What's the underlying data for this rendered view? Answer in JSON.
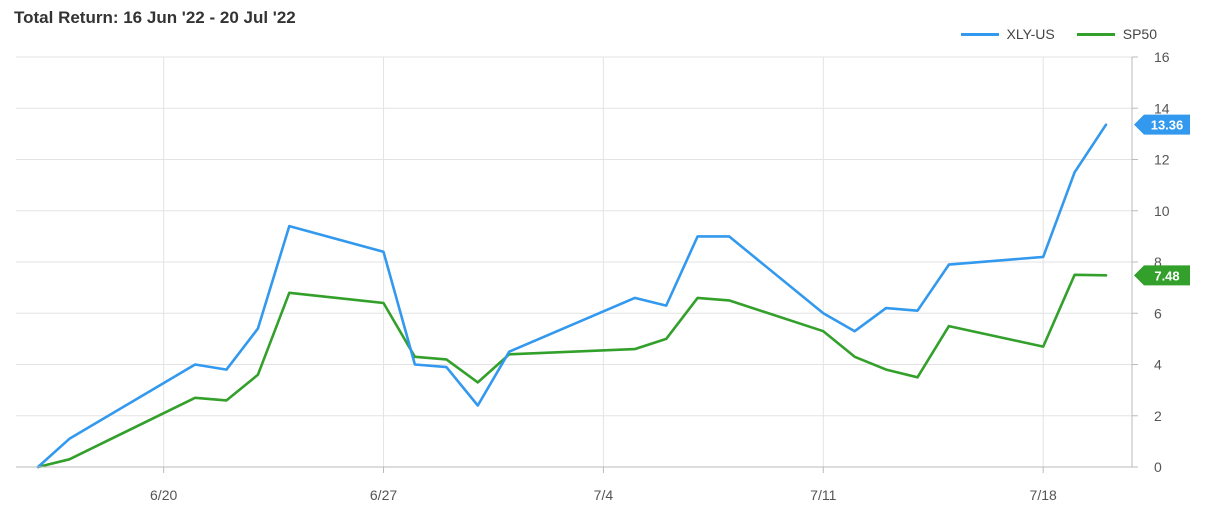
{
  "chart_data": {
    "type": "line",
    "title": "Total Return: 16 Jun '22 - 20 Jul '22",
    "xlabel": "",
    "ylabel": "",
    "ylim": [
      0,
      16
    ],
    "yticks": [
      0,
      2,
      4,
      6,
      8,
      10,
      12,
      14,
      16
    ],
    "y_axis_position": "right",
    "grid": true,
    "legend_position": "top-right",
    "x": [
      "2022-06-16",
      "2022-06-17",
      "2022-06-21",
      "2022-06-22",
      "2022-06-23",
      "2022-06-24",
      "2022-06-27",
      "2022-06-28",
      "2022-06-29",
      "2022-06-30",
      "2022-07-01",
      "2022-07-05",
      "2022-07-06",
      "2022-07-07",
      "2022-07-08",
      "2022-07-11",
      "2022-07-12",
      "2022-07-13",
      "2022-07-14",
      "2022-07-15",
      "2022-07-18",
      "2022-07-19",
      "2022-07-20"
    ],
    "x_tick_labels": [
      {
        "date": "2022-06-20",
        "label": "6/20"
      },
      {
        "date": "2022-06-27",
        "label": "6/27"
      },
      {
        "date": "2022-07-04",
        "label": "7/4"
      },
      {
        "date": "2022-07-11",
        "label": "7/11"
      },
      {
        "date": "2022-07-18",
        "label": "7/18"
      }
    ],
    "series": [
      {
        "name": "XLY-US",
        "color": "#3399ee",
        "last_value_label": "13.36",
        "values": [
          0.0,
          1.1,
          4.0,
          3.8,
          5.4,
          9.4,
          8.4,
          4.0,
          3.9,
          2.4,
          4.5,
          6.6,
          6.3,
          9.0,
          9.0,
          6.0,
          5.3,
          6.2,
          6.1,
          7.9,
          8.2,
          11.5,
          13.36
        ]
      },
      {
        "name": "SP50",
        "color": "#33a02c",
        "last_value_label": "7.48",
        "values": [
          0.0,
          0.3,
          2.7,
          2.6,
          3.6,
          6.8,
          6.4,
          4.3,
          4.2,
          3.3,
          4.4,
          4.6,
          5.0,
          6.6,
          6.5,
          5.3,
          4.3,
          3.8,
          3.5,
          5.5,
          4.7,
          7.5,
          7.48
        ]
      }
    ]
  }
}
